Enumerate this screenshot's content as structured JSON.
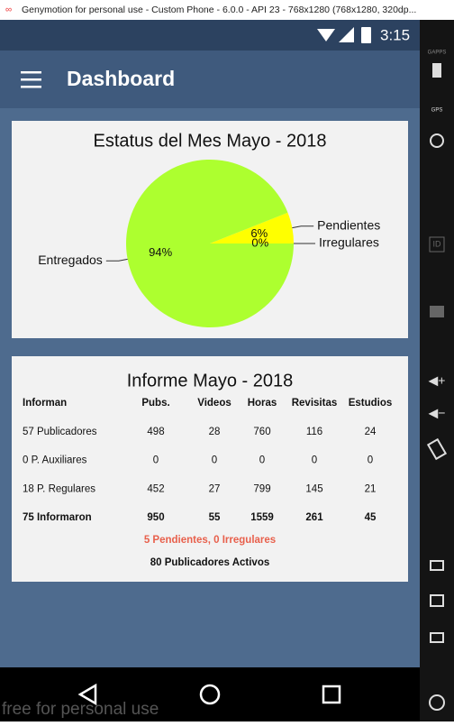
{
  "window": {
    "title": "Genymotion for personal use - Custom Phone - 6.0.0 - API 23 - 768x1280 (768x1280, 320dp..."
  },
  "status_bar": {
    "time": "3:15"
  },
  "app_bar": {
    "title": "Dashboard"
  },
  "pie": {
    "type": "pie",
    "title": "Estatus del Mes Mayo - 2018",
    "categories": [
      "Entregados",
      "Pendientes",
      "Irregulares"
    ],
    "values": [
      94,
      6,
      0
    ],
    "value_labels": [
      "94%",
      "6%",
      "0%"
    ],
    "colors": [
      "#adff2f",
      "#ffff00",
      "#ff4500"
    ]
  },
  "report": {
    "title": "Informe Mayo - 2018",
    "header": [
      "Informan",
      "Pubs.",
      "Videos",
      "Horas",
      "Revisitas",
      "Estudios"
    ],
    "rows": [
      [
        "57 Publicadores",
        498,
        28,
        760,
        116,
        24
      ],
      [
        "0 P. Auxiliares",
        0,
        0,
        0,
        0,
        0
      ],
      [
        "18 P. Regulares",
        452,
        27,
        799,
        145,
        21
      ],
      [
        "75 Informaron",
        950,
        55,
        1559,
        261,
        45
      ]
    ],
    "pending": "5 Pendientes, 0 Irregulares",
    "active": "80 Publicadores Activos"
  },
  "sidebar": {
    "labels": [
      "GAPPS",
      "GPS",
      "ID"
    ]
  },
  "watermark": "free for personal use"
}
